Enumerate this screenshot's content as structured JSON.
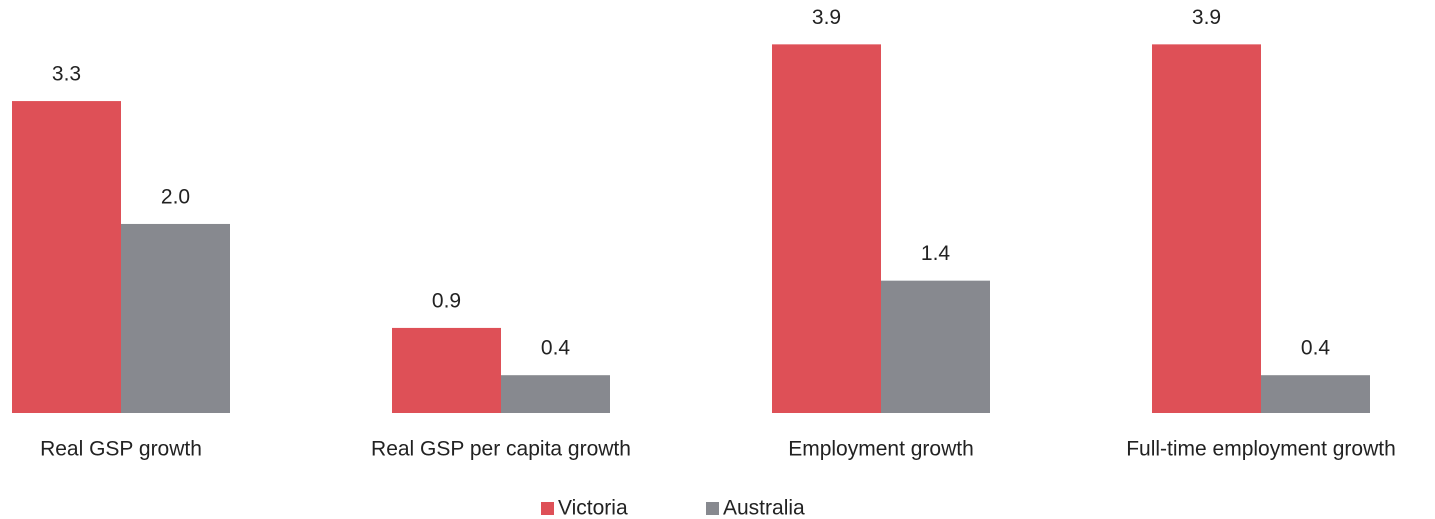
{
  "chart_data": {
    "type": "bar",
    "categories": [
      "Real GSP growth",
      "Real GSP per capita growth",
      "Employment growth",
      "Full-time employment growth"
    ],
    "series": [
      {
        "name": "Victoria",
        "color": "#de5057",
        "values": [
          3.3,
          0.9,
          3.9,
          3.9
        ],
        "value_labels": [
          "3.3",
          "0.9",
          "3.9",
          "3.9"
        ]
      },
      {
        "name": "Australia",
        "color": "#87898f",
        "values": [
          2.0,
          0.4,
          1.4,
          0.4
        ],
        "value_labels": [
          "2.0",
          "0.4",
          "1.4",
          "0.4"
        ]
      }
    ],
    "ylim": [
      0,
      4.2
    ],
    "legend": "bottom"
  }
}
